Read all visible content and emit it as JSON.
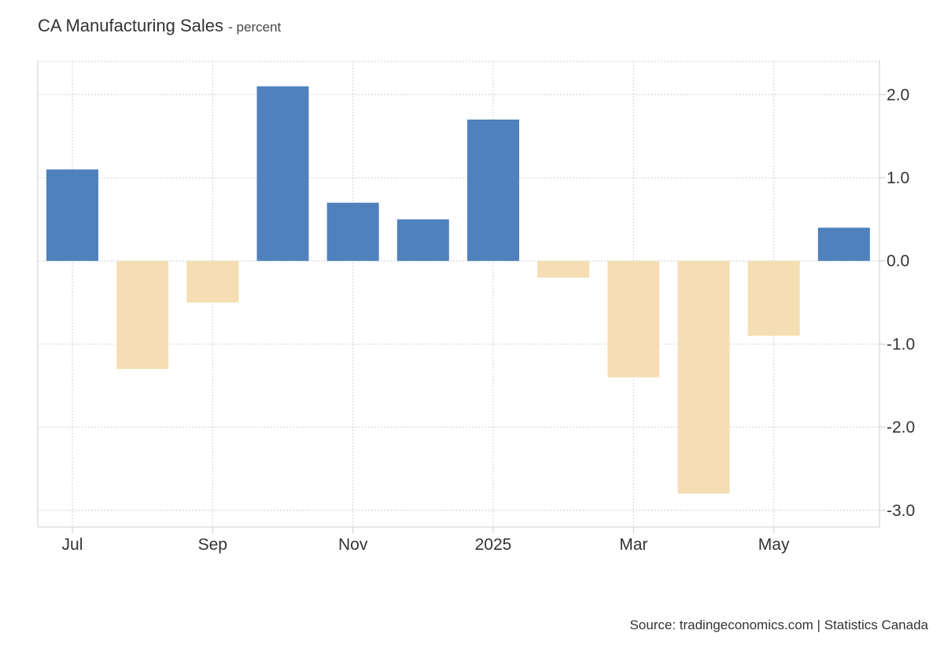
{
  "header": {
    "title": "CA Manufacturing Sales",
    "subtitle": "- percent"
  },
  "footer": {
    "source": "Source: tradingeconomics.com | Statistics Canada"
  },
  "colors": {
    "positive": "#4f81bd",
    "negative": "#f5deb3",
    "grid": "#d9d9d9",
    "axis": "#cccccc"
  },
  "chart_data": {
    "type": "bar",
    "categories": [
      "2024-07",
      "2024-08",
      "2024-09",
      "2024-10",
      "2024-11",
      "2024-12",
      "2025-01",
      "2025-02",
      "2025-03",
      "2025-04",
      "2025-05",
      "2025-06"
    ],
    "values": [
      1.1,
      -1.3,
      -0.5,
      2.1,
      0.7,
      0.5,
      1.7,
      -0.2,
      -1.4,
      -2.8,
      -0.9,
      0.4
    ],
    "x_tick_labels": [
      {
        "category": "2024-07",
        "label": "Jul"
      },
      {
        "category": "2024-09",
        "label": "Sep"
      },
      {
        "category": "2024-11",
        "label": "Nov"
      },
      {
        "category": "2025-01",
        "label": "2025"
      },
      {
        "category": "2025-03",
        "label": "Mar"
      },
      {
        "category": "2025-05",
        "label": "May"
      }
    ],
    "y_ticks": [
      2.0,
      1.0,
      0.0,
      -1.0,
      -2.0,
      -3.0
    ],
    "y_tick_labels": [
      "2.0",
      "1.0",
      "0.0",
      "-1.0",
      "-2.0",
      "-3.0"
    ],
    "ylim": [
      -3.2,
      2.4
    ],
    "y_axis_side": "right",
    "grid": true,
    "legend": "none"
  }
}
